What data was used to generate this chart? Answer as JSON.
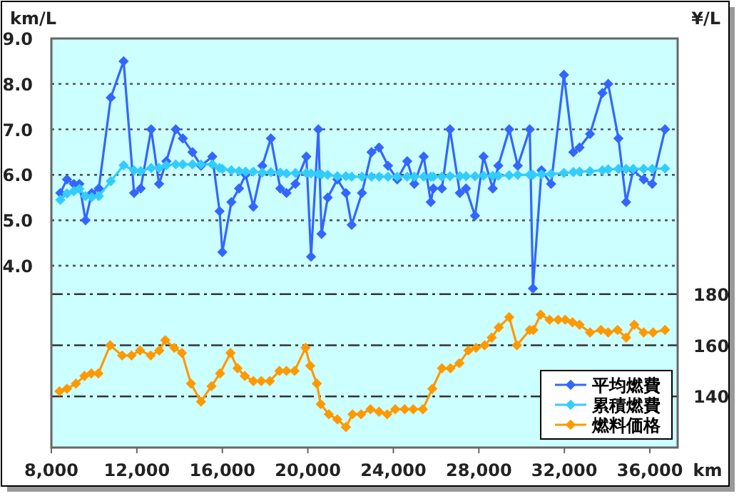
{
  "chart_data": {
    "type": "line",
    "xlabel": "km",
    "ylabel": "km/L",
    "y2label": "¥/L",
    "xlim": [
      8000,
      37300
    ],
    "xticks": [
      {
        "value": 8000,
        "label": "8,000"
      },
      {
        "value": 12000,
        "label": "12,000"
      },
      {
        "value": 16000,
        "label": "16,000"
      },
      {
        "value": 20000,
        "label": "20,000"
      },
      {
        "value": 24000,
        "label": "24,000"
      },
      {
        "value": 28000,
        "label": "28,000"
      },
      {
        "value": 32000,
        "label": "32,000"
      },
      {
        "value": 36000,
        "label": "36,000"
      }
    ],
    "ylim": [
      0,
      9
    ],
    "yticks": [
      {
        "value": 4,
        "label": "4.0"
      },
      {
        "value": 5,
        "label": "5.0"
      },
      {
        "value": 6,
        "label": "6.0"
      },
      {
        "value": 7,
        "label": "7.0"
      },
      {
        "value": 8,
        "label": "8.0"
      },
      {
        "value": 9,
        "label": "9.0"
      }
    ],
    "y2lim": [
      120,
      280
    ],
    "y2ticks": [
      140,
      160,
      180
    ],
    "grid": "y",
    "legend": "bottom right",
    "marker": "diamond",
    "series": [
      {
        "name": "平均燃費",
        "color": "#3366ff",
        "x": [
          8420,
          8730,
          9050,
          9310,
          9600,
          9890,
          10220,
          10780,
          11380,
          11870,
          12180,
          12670,
          13040,
          13380,
          13820,
          14150,
          14600,
          15000,
          15530,
          15870,
          16000,
          16420,
          16780,
          17090,
          17450,
          17870,
          18270,
          18710,
          19000,
          19420,
          19930,
          20150,
          20490,
          20640,
          20930,
          21380,
          21780,
          22050,
          22530,
          22980,
          23330,
          23750,
          24180,
          24650,
          24980,
          25420,
          25750,
          25870,
          26270,
          26650,
          27110,
          27400,
          27820,
          28220,
          28650,
          28910,
          29420,
          29820,
          30380,
          30530,
          30930,
          31380,
          31980,
          32420,
          32710,
          33200,
          33780,
          34050,
          34530,
          34890,
          35220,
          35710,
          36110,
          36710
        ],
        "values": [
          5.6,
          5.9,
          5.8,
          5.8,
          5.0,
          5.6,
          5.7,
          7.7,
          8.5,
          5.6,
          5.7,
          7.0,
          5.8,
          6.3,
          7.0,
          6.8,
          6.5,
          6.2,
          6.4,
          5.2,
          4.3,
          5.4,
          5.7,
          6.0,
          5.3,
          6.2,
          6.8,
          5.7,
          5.6,
          5.8,
          6.4,
          4.2,
          7.0,
          4.7,
          5.5,
          5.9,
          5.6,
          4.9,
          5.6,
          6.5,
          6.6,
          6.2,
          5.9,
          6.3,
          5.8,
          6.4,
          5.4,
          5.7,
          5.7,
          7.0,
          5.6,
          5.7,
          5.1,
          6.4,
          5.7,
          6.2,
          7.0,
          6.2,
          7.0,
          3.5,
          6.1,
          5.8,
          8.2,
          6.5,
          6.6,
          6.9,
          7.8,
          8.0,
          6.8,
          5.4,
          6.1,
          5.9,
          5.8,
          7.0
        ]
      },
      {
        "name": "累積燃費",
        "color": "#33ccff",
        "x": [
          8420,
          8730,
          9050,
          9310,
          9600,
          9890,
          10220,
          10780,
          11380,
          11870,
          12180,
          12670,
          13040,
          13380,
          13820,
          14150,
          14600,
          15000,
          15530,
          15870,
          16000,
          16420,
          16780,
          17090,
          17450,
          17870,
          18270,
          18710,
          19000,
          19420,
          19930,
          20150,
          20490,
          20640,
          20930,
          21380,
          21780,
          22050,
          22530,
          22980,
          23330,
          23750,
          24180,
          24650,
          24980,
          25420,
          25750,
          25870,
          26270,
          26650,
          27110,
          27400,
          27820,
          28220,
          28650,
          28910,
          29420,
          29820,
          30380,
          30530,
          30930,
          31380,
          31980,
          32420,
          32710,
          33200,
          33780,
          34050,
          34530,
          34890,
          35220,
          35710,
          36110,
          36710
        ],
        "values": [
          5.45,
          5.59,
          5.64,
          5.69,
          5.53,
          5.51,
          5.53,
          5.86,
          6.21,
          6.1,
          6.08,
          6.15,
          6.15,
          6.21,
          6.23,
          6.23,
          6.23,
          6.23,
          6.23,
          6.15,
          6.13,
          6.1,
          6.08,
          6.07,
          6.07,
          6.05,
          6.06,
          6.05,
          6.03,
          6.04,
          6.04,
          6.03,
          6.02,
          6.01,
          6.0,
          5.97,
          5.97,
          5.96,
          5.96,
          5.96,
          5.96,
          5.96,
          5.96,
          5.96,
          5.96,
          5.96,
          5.96,
          5.96,
          5.96,
          5.97,
          5.97,
          5.97,
          5.97,
          5.98,
          5.98,
          5.98,
          5.99,
          6.0,
          6.0,
          6.0,
          6.01,
          6.02,
          6.04,
          6.06,
          6.07,
          6.08,
          6.1,
          6.12,
          6.13,
          6.13,
          6.13,
          6.13,
          6.13,
          6.14
        ]
      },
      {
        "name": "燃料価格",
        "color": "#ff9900",
        "axis": "y2",
        "x": [
          8380,
          8730,
          9150,
          9550,
          9870,
          10200,
          10750,
          11310,
          11750,
          12150,
          12650,
          13050,
          13330,
          13750,
          14110,
          14530,
          15000,
          15490,
          15890,
          16380,
          16710,
          17050,
          17450,
          17820,
          18220,
          18670,
          19000,
          19380,
          19890,
          20110,
          20420,
          20600,
          20980,
          21380,
          21780,
          22090,
          22490,
          22930,
          23330,
          23710,
          24090,
          24530,
          24930,
          25380,
          25820,
          26270,
          26670,
          27090,
          27510,
          27870,
          28270,
          28600,
          28930,
          29420,
          29780,
          30380,
          30550,
          30890,
          31310,
          31710,
          32040,
          32380,
          32710,
          33200,
          33710,
          34050,
          34490,
          34890,
          35270,
          35710,
          36150,
          36710
        ],
        "values": [
          142,
          143,
          145,
          148,
          149,
          149,
          160,
          156,
          156,
          158,
          156,
          158,
          162,
          159,
          157,
          145,
          138,
          144,
          149,
          157,
          151,
          148,
          146,
          146,
          146,
          150,
          150,
          150,
          159,
          152,
          145,
          137,
          133,
          131,
          128,
          133,
          133,
          135,
          134,
          133,
          135,
          135,
          135,
          135,
          143,
          151,
          151,
          153,
          158,
          159,
          160,
          163,
          167,
          171,
          160,
          166,
          166,
          172,
          170,
          170,
          170,
          169,
          168,
          165,
          166,
          165,
          166,
          163,
          168,
          165,
          165,
          166
        ]
      }
    ]
  }
}
